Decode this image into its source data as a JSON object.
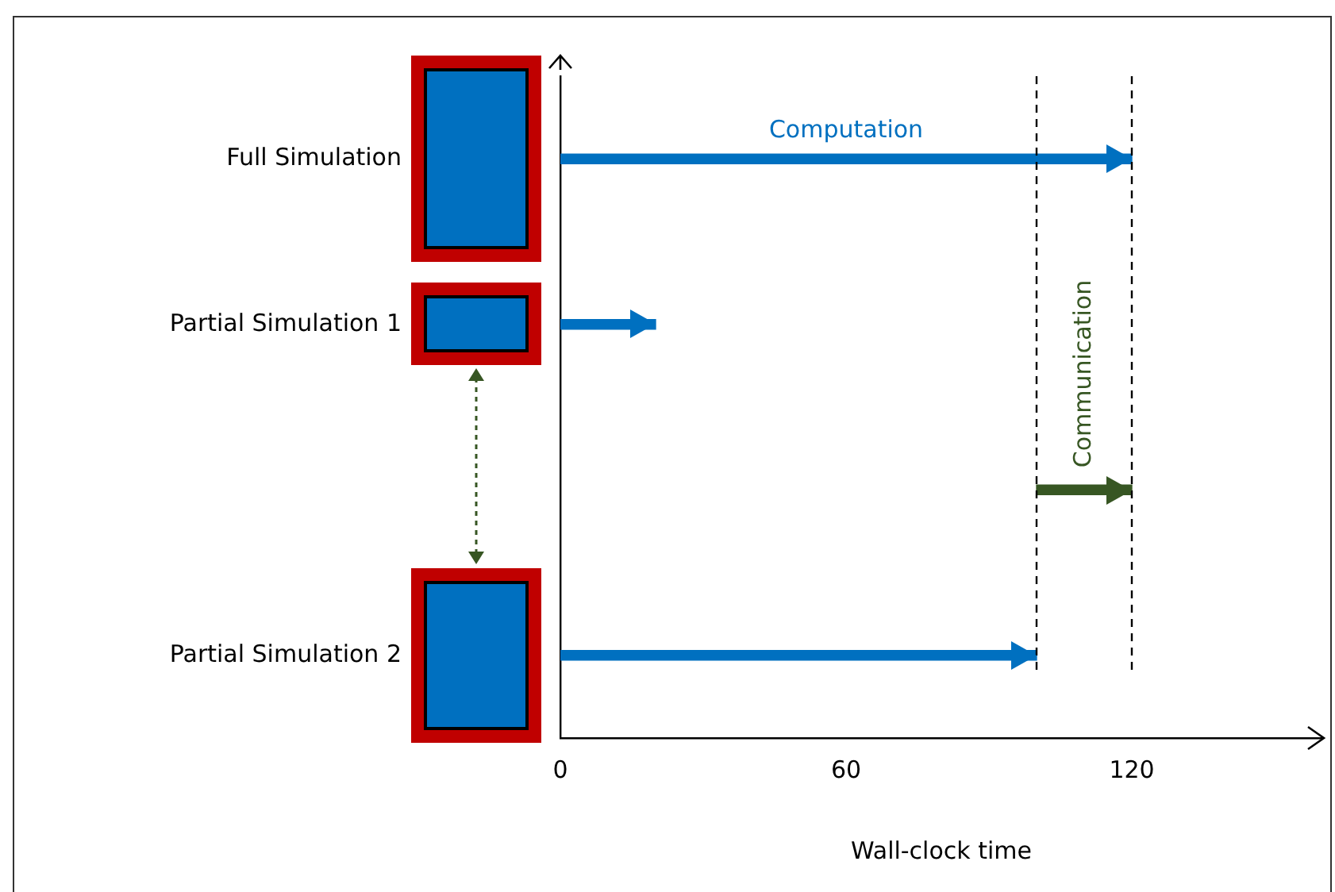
{
  "chart_data": {
    "type": "bar",
    "orientation": "horizontal",
    "xlabel": "Wall-clock time",
    "categories": [
      "Full Simulation",
      "Partial Simulation 1",
      null,
      "Partial Simulation 2"
    ],
    "series": [
      {
        "name": "Computation",
        "color": "#0070c0",
        "base": [
          0,
          0,
          null,
          0
        ],
        "values": [
          120,
          20,
          null,
          100
        ]
      },
      {
        "name": "Communication",
        "color": "#375623",
        "base": [
          null,
          null,
          100,
          null
        ],
        "values": [
          null,
          null,
          20,
          null
        ]
      }
    ],
    "xlim": [
      0,
      160
    ],
    "xticks": [
      0,
      60,
      120
    ],
    "ref_lines": [
      {
        "axis": "x",
        "value": 100,
        "line_style": "dashed"
      },
      {
        "axis": "x",
        "value": 120,
        "line_style": "dashed"
      }
    ],
    "grid": false,
    "legend": false
  }
}
